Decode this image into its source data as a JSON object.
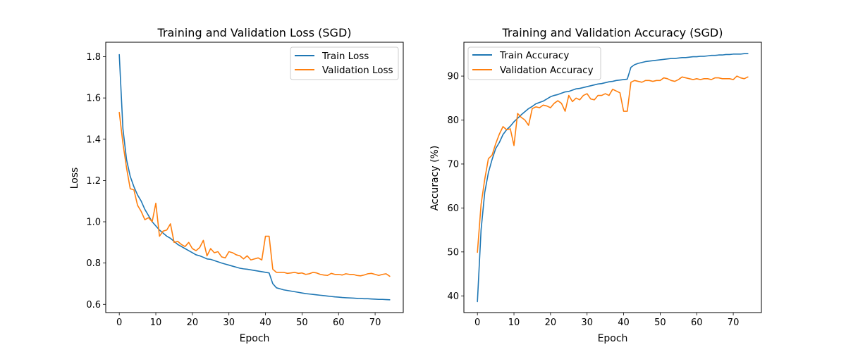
{
  "chart_data": [
    {
      "type": "line",
      "title": "Training and Validation Loss (SGD)",
      "xlabel": "Epoch",
      "ylabel": "Loss",
      "xlim": [
        -3.7,
        77.7
      ],
      "ylim": [
        0.56,
        1.87
      ],
      "xticks": [
        0,
        10,
        20,
        30,
        40,
        50,
        60,
        70
      ],
      "yticks": [
        0.6,
        0.8,
        1.0,
        1.2,
        1.4,
        1.6,
        1.8
      ],
      "ytick_labels": [
        "0.6",
        "0.8",
        "1.0",
        "1.2",
        "1.4",
        "1.6",
        "1.8"
      ],
      "legend_position": "top-right",
      "grid": false,
      "series": [
        {
          "name": "Train Loss",
          "color": "#1f77b4",
          "values": [
            1.81,
            1.45,
            1.3,
            1.22,
            1.17,
            1.13,
            1.1,
            1.06,
            1.03,
            1.0,
            0.98,
            0.96,
            0.945,
            0.93,
            0.92,
            0.905,
            0.89,
            0.88,
            0.87,
            0.86,
            0.85,
            0.84,
            0.835,
            0.828,
            0.82,
            0.818,
            0.812,
            0.806,
            0.8,
            0.795,
            0.79,
            0.785,
            0.78,
            0.775,
            0.772,
            0.77,
            0.767,
            0.764,
            0.761,
            0.758,
            0.755,
            0.752,
            0.7,
            0.68,
            0.675,
            0.67,
            0.667,
            0.664,
            0.661,
            0.658,
            0.655,
            0.652,
            0.65,
            0.648,
            0.646,
            0.644,
            0.642,
            0.64,
            0.638,
            0.636,
            0.635,
            0.633,
            0.632,
            0.631,
            0.63,
            0.629,
            0.628,
            0.627,
            0.627,
            0.626,
            0.625,
            0.624,
            0.624,
            0.623,
            0.622
          ]
        },
        {
          "name": "Validation Loss",
          "color": "#ff7f0e",
          "values": [
            1.53,
            1.38,
            1.26,
            1.16,
            1.155,
            1.08,
            1.05,
            1.01,
            1.02,
            1.0,
            1.09,
            0.93,
            0.955,
            0.96,
            0.99,
            0.9,
            0.905,
            0.89,
            0.88,
            0.9,
            0.87,
            0.86,
            0.875,
            0.91,
            0.835,
            0.87,
            0.85,
            0.855,
            0.83,
            0.825,
            0.855,
            0.85,
            0.84,
            0.835,
            0.82,
            0.835,
            0.815,
            0.82,
            0.825,
            0.815,
            0.93,
            0.93,
            0.77,
            0.755,
            0.755,
            0.755,
            0.75,
            0.752,
            0.755,
            0.75,
            0.752,
            0.745,
            0.748,
            0.755,
            0.752,
            0.745,
            0.742,
            0.74,
            0.75,
            0.745,
            0.745,
            0.742,
            0.748,
            0.745,
            0.745,
            0.74,
            0.738,
            0.742,
            0.748,
            0.75,
            0.745,
            0.74,
            0.745,
            0.748,
            0.736
          ]
        }
      ]
    },
    {
      "type": "line",
      "title": "Training and Validation Accuracy (SGD)",
      "xlabel": "Epoch",
      "ylabel": "Accuracy (%)",
      "xlim": [
        -3.7,
        77.7
      ],
      "ylim": [
        36.2,
        97.7
      ],
      "xticks": [
        0,
        10,
        20,
        30,
        40,
        50,
        60,
        70
      ],
      "yticks": [
        40,
        50,
        60,
        70,
        80,
        90
      ],
      "ytick_labels": [
        "40",
        "50",
        "60",
        "70",
        "80",
        "90"
      ],
      "legend_position": "top-left",
      "grid": false,
      "series": [
        {
          "name": "Train Accuracy",
          "color": "#1f77b4",
          "values": [
            38.7,
            55.0,
            63.5,
            68.0,
            71.0,
            73.5,
            74.9,
            76.7,
            77.8,
            78.6,
            79.6,
            80.4,
            81.2,
            81.9,
            82.6,
            83.1,
            83.7,
            84.0,
            84.3,
            84.8,
            85.3,
            85.6,
            85.8,
            86.1,
            86.4,
            86.5,
            86.8,
            87.1,
            87.2,
            87.4,
            87.6,
            87.8,
            88.0,
            88.2,
            88.3,
            88.5,
            88.7,
            88.8,
            89.0,
            89.1,
            89.2,
            89.3,
            92.0,
            92.6,
            92.9,
            93.1,
            93.3,
            93.4,
            93.5,
            93.6,
            93.7,
            93.8,
            93.9,
            94.0,
            94.0,
            94.1,
            94.2,
            94.2,
            94.3,
            94.4,
            94.4,
            94.5,
            94.5,
            94.6,
            94.7,
            94.7,
            94.8,
            94.8,
            94.9,
            94.9,
            95.0,
            95.0,
            95.0,
            95.1,
            95.1
          ]
        },
        {
          "name": "Validation Accuracy",
          "color": "#ff7f0e",
          "values": [
            49.9,
            60.8,
            66.5,
            71.2,
            72.0,
            74.6,
            76.8,
            78.5,
            77.8,
            78.0,
            74.2,
            81.5,
            80.6,
            80.0,
            78.8,
            82.6,
            83.0,
            82.8,
            83.4,
            83.2,
            82.8,
            83.8,
            84.4,
            83.8,
            82.0,
            85.6,
            84.2,
            85.0,
            84.6,
            85.6,
            86.0,
            84.8,
            84.6,
            85.6,
            85.6,
            86.0,
            85.6,
            87.0,
            86.6,
            86.2,
            82.0,
            82.0,
            88.6,
            89.0,
            88.8,
            88.6,
            89.0,
            89.0,
            88.8,
            89.0,
            89.0,
            89.6,
            89.4,
            89.0,
            88.8,
            89.2,
            89.8,
            89.6,
            89.4,
            89.2,
            89.4,
            89.2,
            89.4,
            89.4,
            89.2,
            89.6,
            89.6,
            89.4,
            89.4,
            89.4,
            89.2,
            90.0,
            89.6,
            89.4,
            89.8
          ]
        }
      ]
    }
  ]
}
